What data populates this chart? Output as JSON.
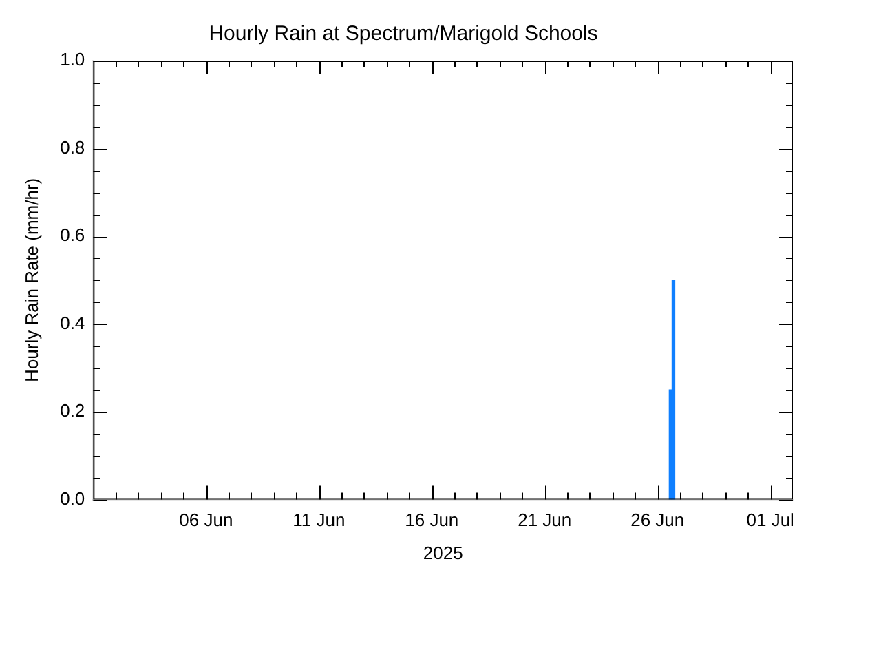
{
  "chart_data": {
    "type": "bar",
    "title": "Hourly Rain at Spectrum/Marigold Schools",
    "xlabel": "2025",
    "ylabel": "Hourly Rain Rate (mm/hr)",
    "x": [
      "2025-06-26T14:00",
      "2025-06-26T17:00"
    ],
    "series": [
      {
        "color": "#0f7fff",
        "values": [
          0.25,
          0.5
        ]
      }
    ],
    "xlim": [
      "2025-06-01",
      "2025-07-02"
    ],
    "xticks": [
      {
        "value": "2025-06-02",
        "label": null
      },
      {
        "value": "2025-06-03",
        "label": null
      },
      {
        "value": "2025-06-04",
        "label": null
      },
      {
        "value": "2025-06-05",
        "label": null
      },
      {
        "value": "2025-06-06",
        "label": "06 Jun"
      },
      {
        "value": "2025-06-07",
        "label": null
      },
      {
        "value": "2025-06-08",
        "label": null
      },
      {
        "value": "2025-06-09",
        "label": null
      },
      {
        "value": "2025-06-10",
        "label": null
      },
      {
        "value": "2025-06-11",
        "label": "11 Jun"
      },
      {
        "value": "2025-06-12",
        "label": null
      },
      {
        "value": "2025-06-13",
        "label": null
      },
      {
        "value": "2025-06-14",
        "label": null
      },
      {
        "value": "2025-06-15",
        "label": null
      },
      {
        "value": "2025-06-16",
        "label": "16 Jun"
      },
      {
        "value": "2025-06-17",
        "label": null
      },
      {
        "value": "2025-06-18",
        "label": null
      },
      {
        "value": "2025-06-19",
        "label": null
      },
      {
        "value": "2025-06-20",
        "label": null
      },
      {
        "value": "2025-06-21",
        "label": "21 Jun"
      },
      {
        "value": "2025-06-22",
        "label": null
      },
      {
        "value": "2025-06-23",
        "label": null
      },
      {
        "value": "2025-06-24",
        "label": null
      },
      {
        "value": "2025-06-25",
        "label": null
      },
      {
        "value": "2025-06-26",
        "label": "26 Jun"
      },
      {
        "value": "2025-06-27",
        "label": null
      },
      {
        "value": "2025-06-28",
        "label": null
      },
      {
        "value": "2025-06-29",
        "label": null
      },
      {
        "value": "2025-06-30",
        "label": null
      },
      {
        "value": "2025-07-01",
        "label": "01 Jul"
      }
    ],
    "ylim": [
      0,
      1
    ],
    "yticks": [
      {
        "value": 0,
        "label": "0.0"
      },
      {
        "value": 0.05,
        "label": null
      },
      {
        "value": 0.1,
        "label": null
      },
      {
        "value": 0.15,
        "label": null
      },
      {
        "value": 0.2,
        "label": "0.2"
      },
      {
        "value": 0.25,
        "label": null
      },
      {
        "value": 0.3,
        "label": null
      },
      {
        "value": 0.35,
        "label": null
      },
      {
        "value": 0.4,
        "label": "0.4"
      },
      {
        "value": 0.45,
        "label": null
      },
      {
        "value": 0.5,
        "label": null
      },
      {
        "value": 0.55,
        "label": null
      },
      {
        "value": 0.6,
        "label": "0.6"
      },
      {
        "value": 0.65,
        "label": null
      },
      {
        "value": 0.7,
        "label": null
      },
      {
        "value": 0.75,
        "label": null
      },
      {
        "value": 0.8,
        "label": "0.8"
      },
      {
        "value": 0.85,
        "label": null
      },
      {
        "value": 0.9,
        "label": null
      },
      {
        "value": 0.95,
        "label": null
      },
      {
        "value": 1,
        "label": "1.0"
      }
    ],
    "grid": false,
    "legend": false
  }
}
